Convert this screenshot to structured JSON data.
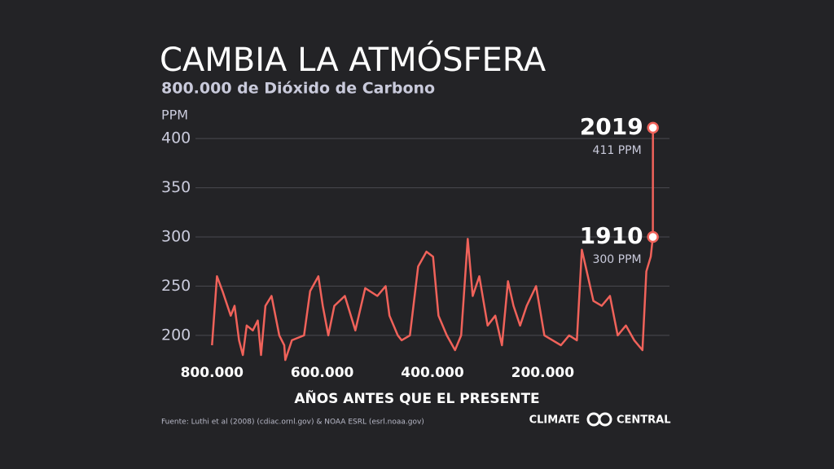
{
  "chart_data": {
    "type": "line",
    "title": "CAMBIA LA ATMÓSFERA",
    "subtitle": "800.000 de Dióxido de Carbono",
    "y_label": "PPM",
    "x_label": "AÑOS ANTES QUE EL PRESENTE",
    "x": [
      800000,
      791000,
      781000,
      766000,
      759000,
      751000,
      744000,
      737000,
      726000,
      717000,
      711000,
      703000,
      692000,
      678000,
      669000,
      667000,
      655000,
      633000,
      622000,
      607000,
      599000,
      589000,
      578000,
      559000,
      540000,
      522000,
      500000,
      485000,
      478000,
      463000,
      456000,
      441000,
      426000,
      411000,
      399000,
      389000,
      374000,
      359000,
      348000,
      336000,
      327000,
      315000,
      300000,
      286000,
      274000,
      263000,
      253000,
      241000,
      229000,
      212000,
      197000,
      182000,
      167000,
      152000,
      138000,
      129000,
      118000,
      108000,
      93000,
      78000,
      64000,
      49000,
      34000,
      19000,
      12000,
      4000,
      109,
      0
    ],
    "series": [
      {
        "name": "CO2",
        "color": "#f0625a",
        "values": [
          190,
          260,
          245,
          220,
          230,
          195,
          180,
          210,
          205,
          215,
          180,
          230,
          240,
          200,
          190,
          175,
          195,
          200,
          245,
          260,
          230,
          200,
          230,
          240,
          205,
          248,
          240,
          250,
          220,
          200,
          195,
          200,
          270,
          285,
          280,
          220,
          200,
          185,
          200,
          298,
          240,
          260,
          210,
          220,
          190,
          255,
          230,
          210,
          230,
          250,
          200,
          195,
          190,
          200,
          195,
          287,
          260,
          235,
          230,
          240,
          200,
          210,
          195,
          185,
          265,
          280,
          300,
          411
        ]
      }
    ],
    "annotations": [
      {
        "text": "2019",
        "note": "411 PPM"
      },
      {
        "text": "1910",
        "note": "300 PPM"
      }
    ],
    "xlim": [
      830000,
      -30000
    ],
    "xticks": [
      {
        "value": 800000,
        "label": "800.000"
      },
      {
        "value": 600000,
        "label": "600.000"
      },
      {
        "value": 400000,
        "label": "400.000"
      },
      {
        "value": 200000,
        "label": "200.000"
      }
    ],
    "ylim": [
      185,
      415
    ],
    "yticks": [
      200,
      250,
      300,
      350,
      400
    ],
    "grid": true,
    "source": "Fuente: Luthi et al (2008) (cdiac.ornl.gov) & NOAA ESRL (esrl.noaa.gov)",
    "brand_left": "CLIMATE",
    "brand_right": "CENTRAL"
  }
}
